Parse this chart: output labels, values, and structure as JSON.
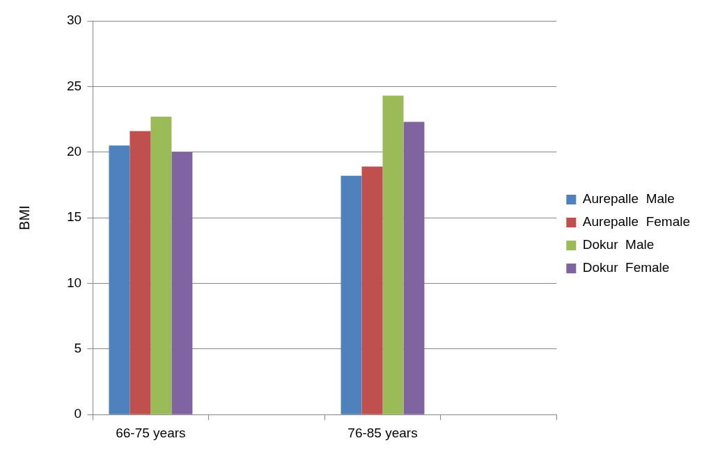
{
  "chart_data": {
    "type": "bar",
    "ylabel": "BMI",
    "categories": [
      "66-75 years",
      null,
      "76-85 years",
      null
    ],
    "series": [
      {
        "name": "Aurepalle  Male",
        "color": "#4f81bd",
        "values": [
          20.5,
          null,
          18.2,
          null
        ]
      },
      {
        "name": "Aurepalle  Female",
        "color": "#c0504d",
        "values": [
          21.6,
          null,
          18.9,
          null
        ]
      },
      {
        "name": "Dokur  Male",
        "color": "#9bbb59",
        "values": [
          22.7,
          null,
          24.3,
          null
        ]
      },
      {
        "name": "Dokur  Female",
        "color": "#8064a2",
        "values": [
          20.0,
          null,
          22.3,
          null
        ]
      }
    ],
    "ylim": [
      0,
      30
    ],
    "yticks": [
      0,
      5,
      10,
      15,
      20,
      25,
      30
    ],
    "grid": "y",
    "legend": "right"
  }
}
